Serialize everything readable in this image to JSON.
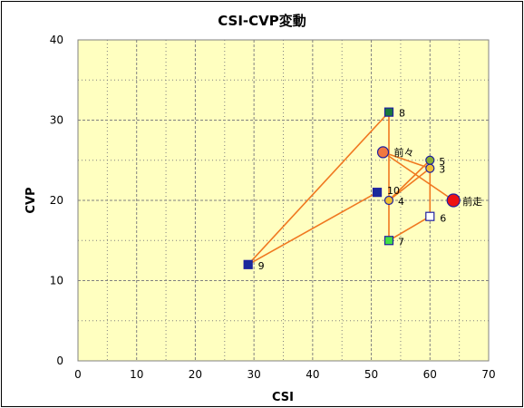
{
  "chart_data": {
    "type": "scatter",
    "title": "CSI-CVP変動",
    "xlabel": "CSI",
    "ylabel": "CVP",
    "xlim": [
      0,
      70
    ],
    "ylim": [
      0,
      40
    ],
    "x_ticks": [
      "0",
      "10",
      "20",
      "30",
      "40",
      "50",
      "60",
      "70"
    ],
    "y_ticks": [
      "0",
      "10",
      "20",
      "30",
      "40"
    ],
    "grid": true,
    "colors": {
      "plot_background": "#ffffc0",
      "grid": "#808080",
      "line": "#f07820"
    },
    "points": [
      {
        "label": "前走",
        "x": 64,
        "y": 20,
        "marker": "circle",
        "fill": "#ee1111",
        "stroke": "#2020a0",
        "size": 7
      },
      {
        "label": "前々",
        "x": 52,
        "y": 26,
        "marker": "circle",
        "fill": "#f07840",
        "stroke": "#2020a0",
        "size": 6
      },
      {
        "label": "3",
        "x": 60,
        "y": 24,
        "marker": "circle",
        "fill": "#f0c030",
        "stroke": "#2020a0",
        "size": 4.5
      },
      {
        "label": "4",
        "x": 53,
        "y": 20,
        "marker": "circle",
        "fill": "#f0c030",
        "stroke": "#2020a0",
        "size": 4.5
      },
      {
        "label": "5",
        "x": 60,
        "y": 25,
        "marker": "circle",
        "fill": "#88b030",
        "stroke": "#2020a0",
        "size": 4.5
      },
      {
        "label": "6",
        "x": 60,
        "y": 18,
        "marker": "square",
        "fill": "#ffffff",
        "stroke": "#2020a0",
        "size": 4.5
      },
      {
        "label": "7",
        "x": 53,
        "y": 15,
        "marker": "square",
        "fill": "#44e044",
        "stroke": "#2020a0",
        "size": 4.5
      },
      {
        "label": "8",
        "x": 53,
        "y": 31,
        "marker": "square",
        "fill": "#1a7a3a",
        "stroke": "#2020a0",
        "size": 4.5
      },
      {
        "label": "9",
        "x": 29,
        "y": 12,
        "marker": "square",
        "fill": "#1a2a9a",
        "stroke": "#2020a0",
        "size": 4.5
      },
      {
        "label": "10",
        "x": 51,
        "y": 21,
        "marker": "square",
        "fill": "#1a2a9a",
        "stroke": "#2020a0",
        "size": 4.5
      }
    ],
    "connection_order": [
      "前走",
      "前々",
      "3",
      "4",
      "5",
      "6",
      "7",
      "8",
      "9",
      "10"
    ]
  }
}
